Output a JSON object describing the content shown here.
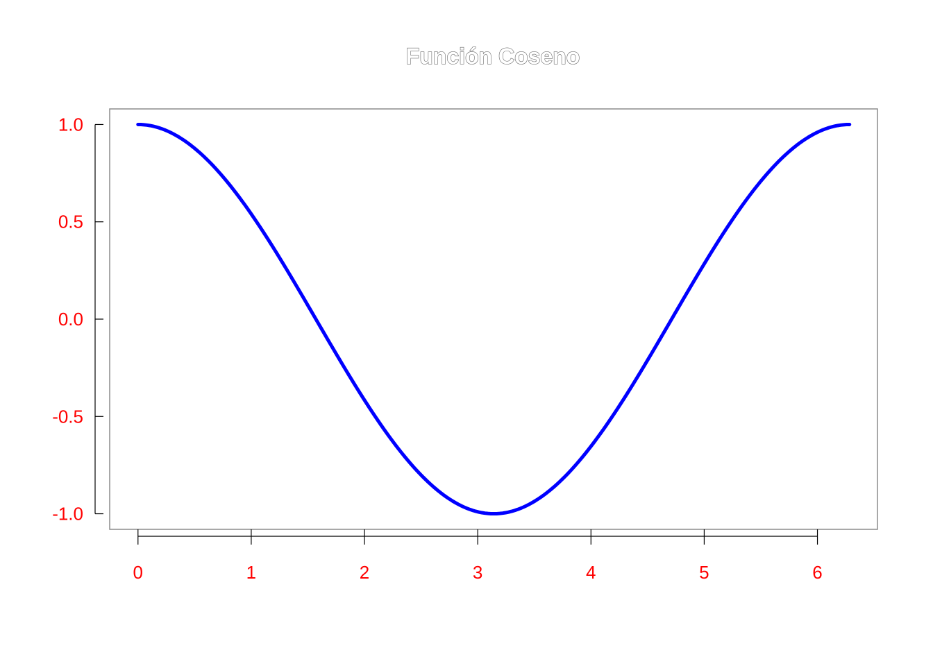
{
  "chart_data": {
    "type": "line",
    "title": "Función Coseno",
    "xlabel": "",
    "ylabel": "",
    "xlim": [
      -0.25,
      6.53
    ],
    "ylim": [
      -1.08,
      1.08
    ],
    "x_ticks": [
      0,
      1,
      2,
      3,
      4,
      5,
      6
    ],
    "x_tick_labels": [
      "0",
      "1",
      "2",
      "3",
      "4",
      "5",
      "6"
    ],
    "y_ticks": [
      1.0,
      0.5,
      0.0,
      -0.5,
      -1.0
    ],
    "y_tick_labels": [
      "1.0",
      "0.5",
      "0.0",
      "-0.5",
      "-1.0"
    ],
    "grid": false,
    "legend": "none",
    "series": [
      {
        "function": "cos(x)",
        "x_range": [
          0,
          6.2832
        ],
        "x": [
          0,
          0.5,
          1.0,
          1.5,
          1.5708,
          2.0,
          2.5,
          3.0,
          3.1416,
          3.5,
          4.0,
          4.5,
          4.7124,
          5.0,
          5.5,
          6.0,
          6.2832
        ],
        "y": [
          1.0,
          0.878,
          0.54,
          0.071,
          0.0,
          -0.416,
          -0.801,
          -0.99,
          -1.0,
          -0.936,
          -0.654,
          -0.211,
          0.0,
          0.284,
          0.709,
          0.96,
          1.0
        ]
      }
    ],
    "colors": {
      "line": "#0000ff",
      "tick_labels": "#ff0000",
      "axes": "#000000",
      "box": "#8c8c8c",
      "title_fill": "#ffffff",
      "title_outline": "#666666"
    }
  }
}
